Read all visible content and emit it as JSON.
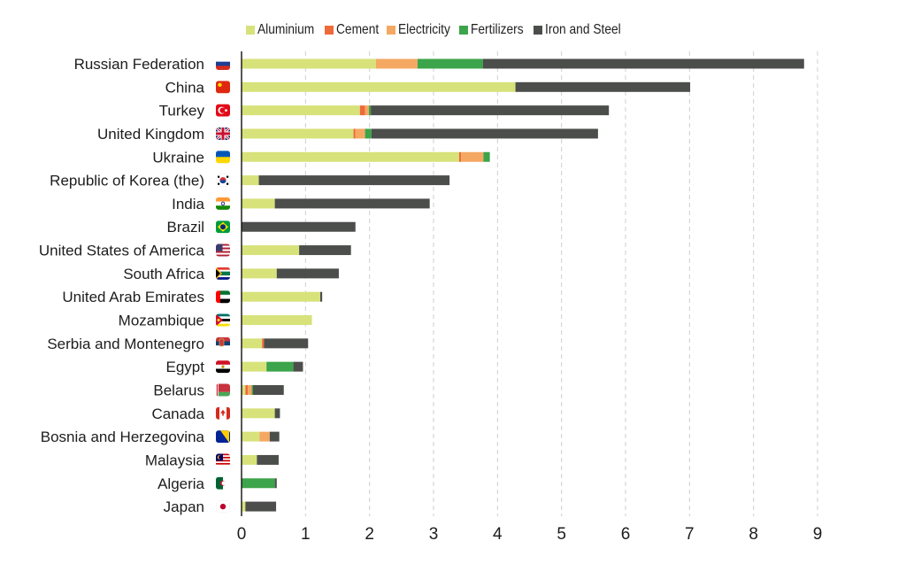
{
  "chart_data": {
    "type": "bar",
    "orientation": "horizontal",
    "stacked": true,
    "title": "",
    "xlabel": "",
    "ylabel": "",
    "xlim": [
      0,
      9
    ],
    "xticks": [
      "0",
      "1",
      "2",
      "3",
      "4",
      "5",
      "6",
      "7",
      "8",
      "9"
    ],
    "grid": "vertical dashed",
    "legend_position": "top",
    "categories": [
      "Russian Federation",
      "China",
      "Turkey",
      "United Kingdom",
      "Ukraine",
      "Republic of Korea (the)",
      "India",
      "Brazil",
      "United States of America",
      "South Africa",
      "United Arab Emirates",
      "Mozambique",
      "Serbia and Montenegro",
      "Egypt",
      "Belarus",
      "Canada",
      "Bosnia and Herzegovina",
      "Malaysia",
      "Algeria",
      "Japan"
    ],
    "flag_icons": [
      "russia-flag-icon",
      "china-flag-icon",
      "turkey-flag-icon",
      "uk-flag-icon",
      "ukraine-flag-icon",
      "south-korea-flag-icon",
      "india-flag-icon",
      "brazil-flag-icon",
      "usa-flag-icon",
      "south-africa-flag-icon",
      "uae-flag-icon",
      "mozambique-flag-icon",
      "serbia-montenegro-flag-icon",
      "egypt-flag-icon",
      "belarus-flag-icon",
      "canada-flag-icon",
      "bosnia-flag-icon",
      "malaysia-flag-icon",
      "algeria-flag-icon",
      "japan-flag-icon"
    ],
    "series": [
      {
        "name": "Aluminium",
        "color": "#d7e27a",
        "values": [
          2.1,
          4.28,
          1.85,
          1.75,
          3.4,
          0.27,
          0.52,
          0.0,
          0.9,
          0.55,
          1.23,
          1.1,
          0.32,
          0.39,
          0.06,
          0.52,
          0.28,
          0.24,
          0.0,
          0.06
        ]
      },
      {
        "name": "Cement",
        "color": "#ee6a3a",
        "values": [
          0.0,
          0.0,
          0.08,
          0.03,
          0.03,
          0.0,
          0.0,
          0.0,
          0.0,
          0.0,
          0.0,
          0.0,
          0.03,
          0.0,
          0.04,
          0.0,
          0.0,
          0.0,
          0.0,
          0.0
        ]
      },
      {
        "name": "Electricity",
        "color": "#f5a862",
        "values": [
          0.65,
          0.0,
          0.06,
          0.15,
          0.35,
          0.0,
          0.0,
          0.0,
          0.0,
          0.0,
          0.0,
          0.0,
          0.0,
          0.0,
          0.06,
          0.0,
          0.16,
          0.0,
          0.0,
          0.0
        ]
      },
      {
        "name": "Fertilizers",
        "color": "#3ca44a",
        "values": [
          1.02,
          0.0,
          0.03,
          0.1,
          0.1,
          0.0,
          0.0,
          0.0,
          0.0,
          0.0,
          0.0,
          0.0,
          0.0,
          0.42,
          0.02,
          0.0,
          0.0,
          0.0,
          0.52,
          0.0
        ]
      },
      {
        "name": "Iron and Steel",
        "color": "#4b4e4b",
        "values": [
          5.02,
          2.73,
          3.72,
          3.54,
          0.0,
          2.98,
          2.42,
          1.78,
          0.81,
          0.97,
          0.03,
          0.0,
          0.69,
          0.15,
          0.48,
          0.08,
          0.15,
          0.34,
          0.03,
          0.48
        ]
      }
    ]
  }
}
